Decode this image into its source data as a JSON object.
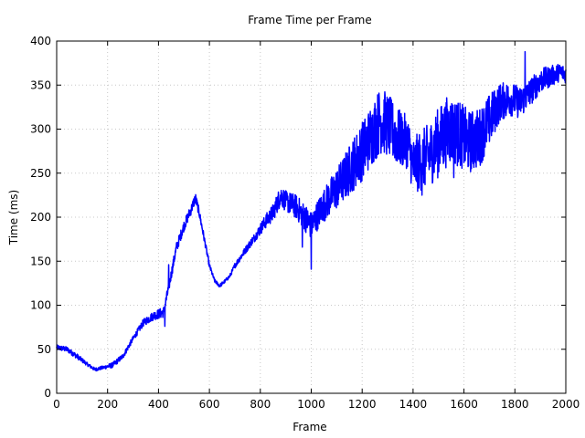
{
  "chart_data": {
    "type": "line",
    "title": "Frame Time per Frame",
    "xlabel": "Frame",
    "ylabel": "Time (ms)",
    "xlim": [
      0,
      2000
    ],
    "ylim": [
      0,
      400
    ],
    "x_ticks": [
      0,
      200,
      400,
      600,
      800,
      1000,
      1200,
      1400,
      1600,
      1800,
      2000
    ],
    "y_ticks": [
      0,
      50,
      100,
      150,
      200,
      250,
      300,
      350,
      400
    ],
    "grid": true,
    "legend": "none",
    "color": "#0000ff",
    "series": [
      {
        "x": [
          0,
          40,
          80,
          120,
          150,
          180,
          220,
          260,
          300,
          340,
          380,
          420,
          440,
          470,
          500,
          530,
          545,
          560,
          580,
          600,
          620,
          640,
          660,
          680,
          700,
          740,
          780,
          820,
          850,
          880,
          900,
          940,
          980,
          1000,
          1040,
          1080,
          1120,
          1160,
          1200,
          1240,
          1270,
          1300,
          1340,
          1380,
          1400,
          1420,
          1460,
          1500,
          1540,
          1580,
          1620,
          1660,
          1700,
          1740,
          1780,
          1820,
          1860,
          1900,
          1940,
          1980,
          2000
        ],
        "values": [
          52,
          50,
          42,
          33,
          27,
          29,
          32,
          42,
          62,
          80,
          88,
          92,
          120,
          165,
          190,
          210,
          222,
          205,
          175,
          145,
          128,
          122,
          127,
          133,
          145,
          162,
          178,
          195,
          205,
          225,
          218,
          212,
          198,
          190,
          210,
          225,
          240,
          258,
          275,
          295,
          310,
          305,
          290,
          285,
          258,
          262,
          270,
          285,
          300,
          295,
          285,
          290,
          310,
          330,
          335,
          330,
          342,
          355,
          360,
          365,
          362
        ],
        "noise": [
          3,
          3,
          3,
          2,
          2,
          2,
          3,
          3,
          3,
          4,
          5,
          6,
          6,
          6,
          6,
          6,
          6,
          5,
          4,
          3,
          2,
          2,
          2,
          2,
          3,
          4,
          5,
          8,
          10,
          12,
          12,
          14,
          16,
          16,
          18,
          22,
          26,
          30,
          34,
          36,
          38,
          36,
          34,
          30,
          32,
          34,
          36,
          40,
          40,
          38,
          36,
          34,
          30,
          22,
          20,
          18,
          16,
          14,
          12,
          10,
          10
        ]
      }
    ],
    "spikes": [
      {
        "x": 425,
        "y": 76
      },
      {
        "x": 440,
        "y": 146
      },
      {
        "x": 965,
        "y": 166
      },
      {
        "x": 1000,
        "y": 141
      },
      {
        "x": 1290,
        "y": 338
      },
      {
        "x": 1435,
        "y": 225
      },
      {
        "x": 1560,
        "y": 245
      },
      {
        "x": 1840,
        "y": 388
      }
    ]
  }
}
